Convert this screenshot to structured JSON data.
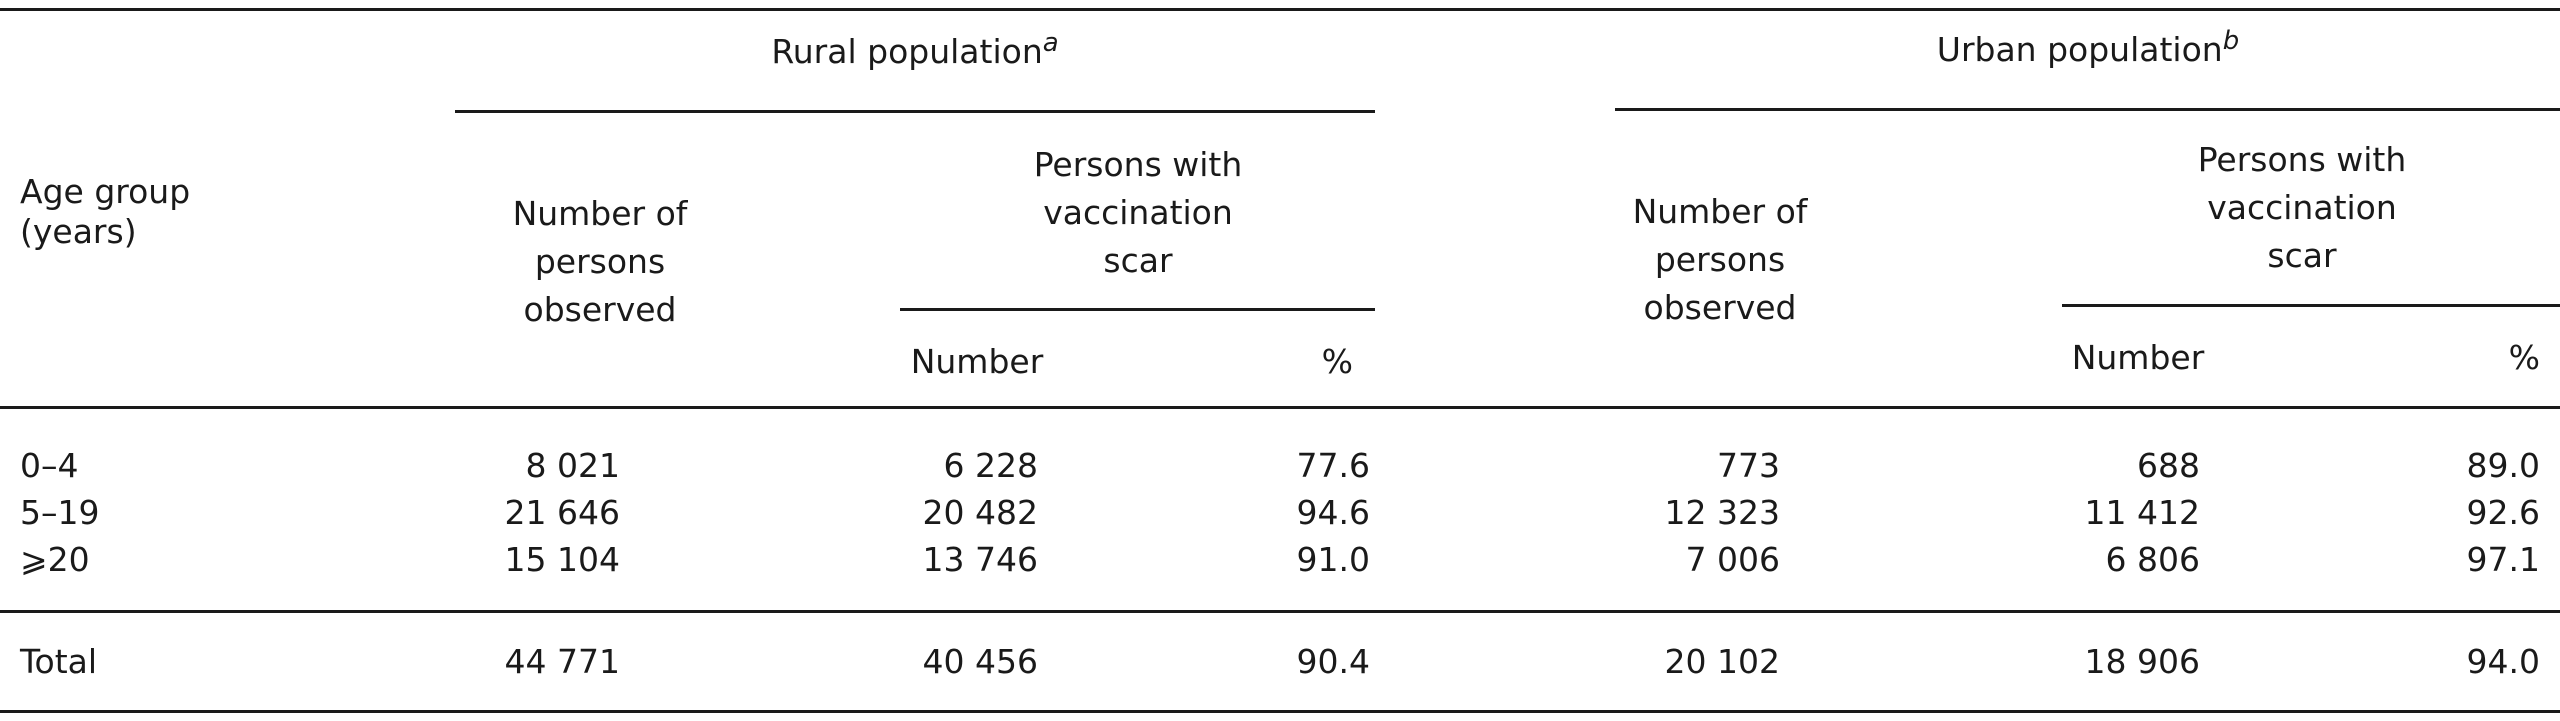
{
  "table": {
    "groups": {
      "rural": {
        "label": "Rural population",
        "footnote": "a"
      },
      "urban": {
        "label": "Urban population",
        "footnote": "b"
      }
    },
    "headers": {
      "age_group": [
        "Age group",
        "(years)"
      ],
      "observed": [
        "Number of",
        "persons",
        "observed"
      ],
      "with_scar": [
        "Persons with",
        "vaccination",
        "scar"
      ],
      "number": "Number",
      "percent": "%"
    },
    "rows": [
      {
        "age": "0–4",
        "rural_observed": "8 021",
        "rural_number": "6 228",
        "rural_percent": "77.6",
        "urban_observed": "773",
        "urban_number": "688",
        "urban_percent": "89.0"
      },
      {
        "age": "5–19",
        "rural_observed": "21 646",
        "rural_number": "20 482",
        "rural_percent": "94.6",
        "urban_observed": "12 323",
        "urban_number": "11 412",
        "urban_percent": "92.6"
      },
      {
        "age": "⩾20",
        "rural_observed": "15 104",
        "rural_number": "13 746",
        "rural_percent": "91.0",
        "urban_observed": "7 006",
        "urban_number": "6 806",
        "urban_percent": "97.1"
      }
    ],
    "total": {
      "age": "Total",
      "rural_observed": "44 771",
      "rural_number": "40 456",
      "rural_percent": "90.4",
      "urban_observed": "20 102",
      "urban_number": "18 906",
      "urban_percent": "94.0"
    }
  }
}
